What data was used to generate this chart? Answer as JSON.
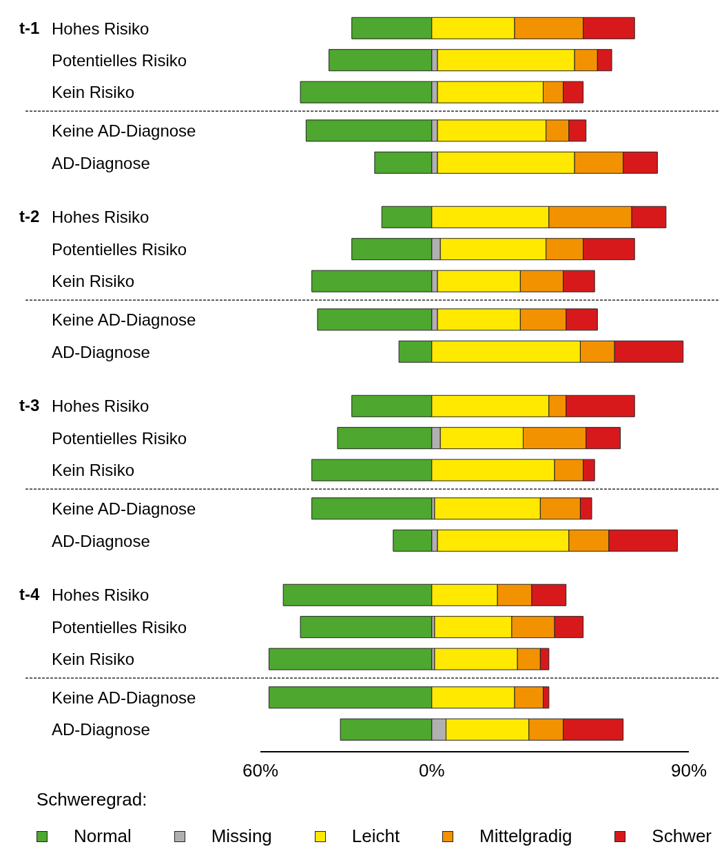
{
  "chart_data": {
    "type": "bar",
    "orientation": "horizontal",
    "stacked": true,
    "legend_title": "Schweregrad:",
    "legend": "bottom",
    "categories": [
      "Hohes Risiko",
      "Potentielles Risiko",
      "Kein Risiko",
      "Keine AD-Diagnose",
      "AD-Diagnose",
      "Hohes Risiko",
      "Potentielles Risiko",
      "Kein Risiko",
      "Keine AD-Diagnose",
      "AD-Diagnose",
      "Hohes Risiko",
      "Potentielles Risiko",
      "Kein Risiko",
      "Keine AD-Diagnose",
      "AD-Diagnose",
      "Hohes Risiko",
      "Potentielles Risiko",
      "Kein Risiko",
      "Keine AD-Diagnose",
      "AD-Diagnose"
    ],
    "annotations": [
      "t-1",
      "t-2",
      "t-3",
      "t-4"
    ],
    "xlim": [
      -60,
      90
    ],
    "xticks": [
      {
        "value": -60,
        "label": "60%"
      },
      {
        "value": 0,
        "label": "0%"
      },
      {
        "value": 90,
        "label": "90%"
      }
    ],
    "series": [
      {
        "name": "Normal",
        "color": "#4ea72e",
        "values": [
          -28,
          -36,
          -46,
          -44,
          -20,
          -17.5,
          -28,
          -42,
          -40,
          -11.5,
          -28,
          -33,
          -42,
          -42,
          -13.5,
          -52,
          -46,
          -57,
          -57,
          -32
        ]
      },
      {
        "name": "Missing",
        "color": "#b0b0b0",
        "values": [
          0,
          2,
          2,
          2,
          2,
          0,
          3,
          2,
          2,
          0,
          0,
          3,
          0,
          1,
          2,
          0,
          1,
          1,
          0,
          5
        ]
      },
      {
        "name": "Leicht",
        "color": "#ffe900",
        "values": [
          29,
          48,
          37,
          38,
          48,
          41,
          37,
          29,
          29,
          52,
          41,
          29,
          43,
          37,
          46,
          23,
          27,
          29,
          29,
          29
        ]
      },
      {
        "name": "Mittelgradig",
        "color": "#f39200",
        "values": [
          24,
          8,
          7,
          8,
          17,
          29,
          13,
          15,
          16,
          12,
          6,
          22,
          10,
          14,
          14,
          12,
          15,
          8,
          10,
          12
        ]
      },
      {
        "name": "Schwer",
        "color": "#d7191c",
        "values": [
          18,
          5,
          7,
          6,
          12,
          12,
          18,
          11,
          11,
          24,
          24,
          12,
          4,
          4,
          24,
          12,
          10,
          3,
          2,
          21
        ]
      }
    ]
  }
}
